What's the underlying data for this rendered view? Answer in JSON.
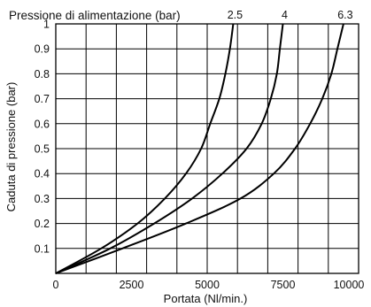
{
  "chart_data": {
    "type": "line",
    "title": "Pressione di alimentazione (bar)",
    "xlabel": "Portata (Nl/min.)",
    "ylabel": "Caduta di pressione (bar)",
    "xlim": [
      0,
      10000
    ],
    "ylim": [
      0,
      1
    ],
    "x_ticks": [
      0,
      2500,
      5000,
      7500,
      10000
    ],
    "x_tick_labels": [
      "0",
      "2500",
      "5000",
      "7500",
      "10000"
    ],
    "y_ticks": [
      0.1,
      0.2,
      0.3,
      0.4,
      0.5,
      0.6,
      0.7,
      0.8,
      0.9,
      1
    ],
    "y_tick_labels": [
      "0.1",
      "0.2",
      "0.3",
      "0.4",
      "0.5",
      "0.6",
      "0.7",
      "0.8",
      "0.9",
      "1"
    ],
    "grid": true,
    "grid_minor_x": 1000,
    "series": [
      {
        "name": "2.5",
        "points": [
          [
            0,
            0
          ],
          [
            1500,
            0.1
          ],
          [
            2700,
            0.2
          ],
          [
            3600,
            0.3
          ],
          [
            4300,
            0.4
          ],
          [
            4800,
            0.5
          ],
          [
            5100,
            0.6
          ],
          [
            5400,
            0.7
          ],
          [
            5600,
            0.8
          ],
          [
            5750,
            0.9
          ],
          [
            5860,
            1.0
          ]
        ]
      },
      {
        "name": "4",
        "points": [
          [
            0,
            0
          ],
          [
            1800,
            0.1
          ],
          [
            3250,
            0.2
          ],
          [
            4500,
            0.3
          ],
          [
            5500,
            0.4
          ],
          [
            6300,
            0.5
          ],
          [
            6800,
            0.6
          ],
          [
            7100,
            0.7
          ],
          [
            7300,
            0.8
          ],
          [
            7400,
            0.9
          ],
          [
            7500,
            1.0
          ]
        ]
      },
      {
        "name": "6.3",
        "points": [
          [
            0,
            0
          ],
          [
            2200,
            0.1
          ],
          [
            4300,
            0.2
          ],
          [
            6100,
            0.3
          ],
          [
            7200,
            0.4
          ],
          [
            7900,
            0.5
          ],
          [
            8400,
            0.6
          ],
          [
            8800,
            0.7
          ],
          [
            9100,
            0.8
          ],
          [
            9300,
            0.9
          ],
          [
            9500,
            1.0
          ]
        ]
      }
    ]
  }
}
